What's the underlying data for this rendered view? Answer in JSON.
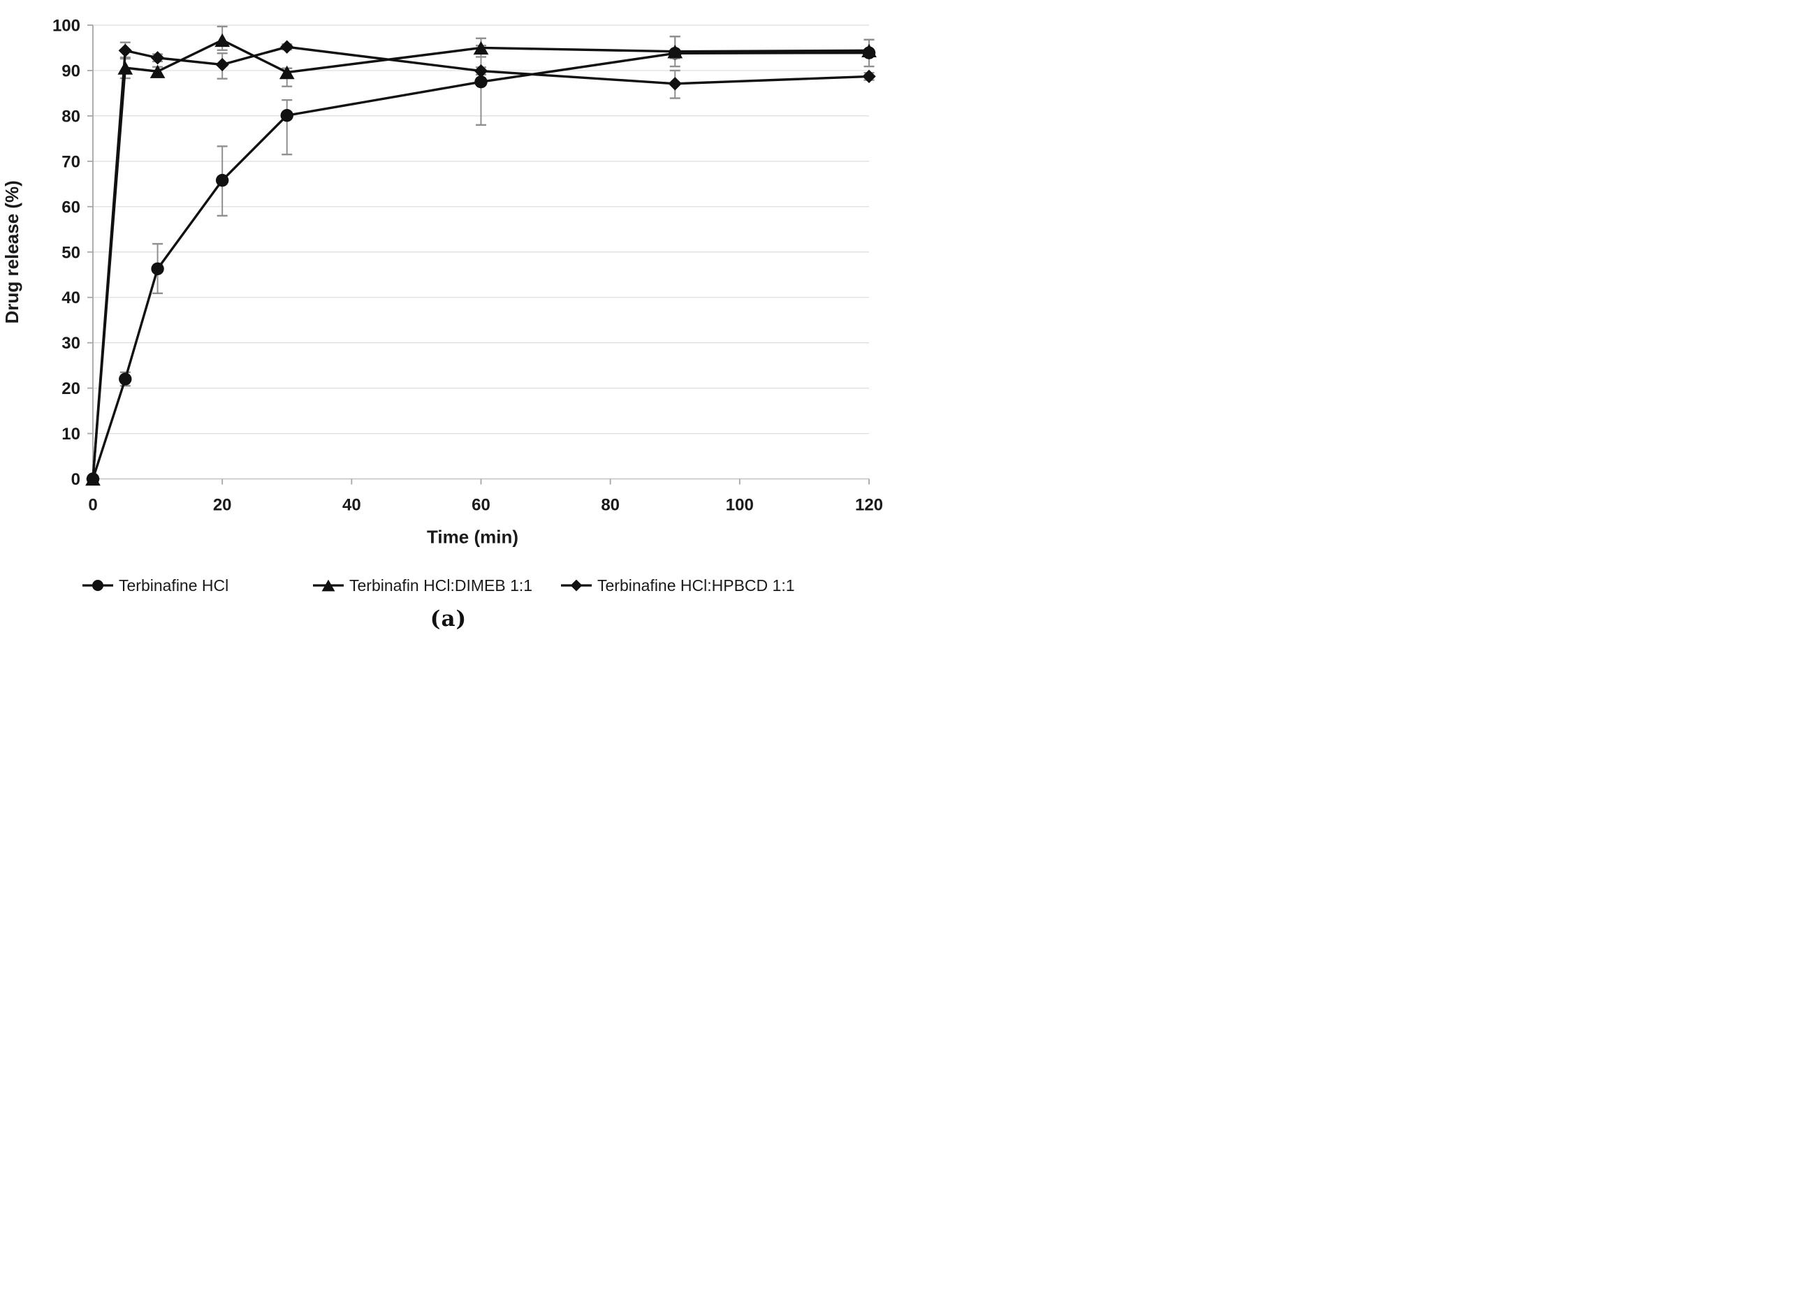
{
  "figure": {
    "caption": "(a)"
  },
  "chart_data": {
    "type": "line",
    "title": "",
    "xlabel": "Time (min)",
    "ylabel": "Drug release (%)",
    "xlim": [
      0,
      120
    ],
    "ylim": [
      0,
      100
    ],
    "x_ticks": [
      0,
      20,
      40,
      60,
      80,
      100,
      120
    ],
    "y_ticks": [
      0,
      10,
      20,
      30,
      40,
      50,
      60,
      70,
      80,
      90,
      100
    ],
    "grid": "horizontal",
    "legend_position": "bottom",
    "x": [
      0,
      5,
      10,
      20,
      30,
      60,
      90,
      120
    ],
    "series": [
      {
        "name": "Terbinafine HCl",
        "marker": "circle",
        "values": [
          0,
          22.0,
          46.3,
          65.8,
          80.1,
          87.5,
          93.8,
          93.9
        ],
        "err_up": [
          0,
          1.5,
          5.5,
          7.5,
          3.4,
          8.0,
          3.7,
          2.9
        ],
        "err_down": [
          0,
          1.5,
          5.4,
          7.8,
          8.6,
          9.5,
          2.9,
          3.0
        ]
      },
      {
        "name": "Terbinafin HCl:DIMEB 1:1",
        "marker": "triangle",
        "values": [
          0,
          90.6,
          89.8,
          96.7,
          89.6,
          95.0,
          94.2,
          94.4
        ],
        "err_up": [
          0,
          2.0,
          1.0,
          3.0,
          0.9,
          2.1,
          3.3,
          2.4
        ],
        "err_down": [
          0,
          2.3,
          1.0,
          2.2,
          3.1,
          2.0,
          1.5,
          1.0
        ]
      },
      {
        "name": "Terbinafine HCl:HPBCD 1:1",
        "marker": "diamond",
        "values": [
          0,
          94.4,
          92.8,
          91.3,
          95.2,
          89.9,
          87.1,
          88.7
        ],
        "err_up": [
          0,
          1.8,
          0.8,
          2.5,
          0.6,
          0.8,
          2.9,
          0.8
        ],
        "err_down": [
          0,
          1.5,
          0.8,
          3.1,
          0.6,
          0.8,
          3.2,
          0.8
        ]
      }
    ],
    "colors": {
      "series": "#111111",
      "error_bar": "#8f8f8f",
      "gridline": "#dcdcdc",
      "axis": "#a6a6a6",
      "tick_label": "#1a1a1a"
    }
  }
}
